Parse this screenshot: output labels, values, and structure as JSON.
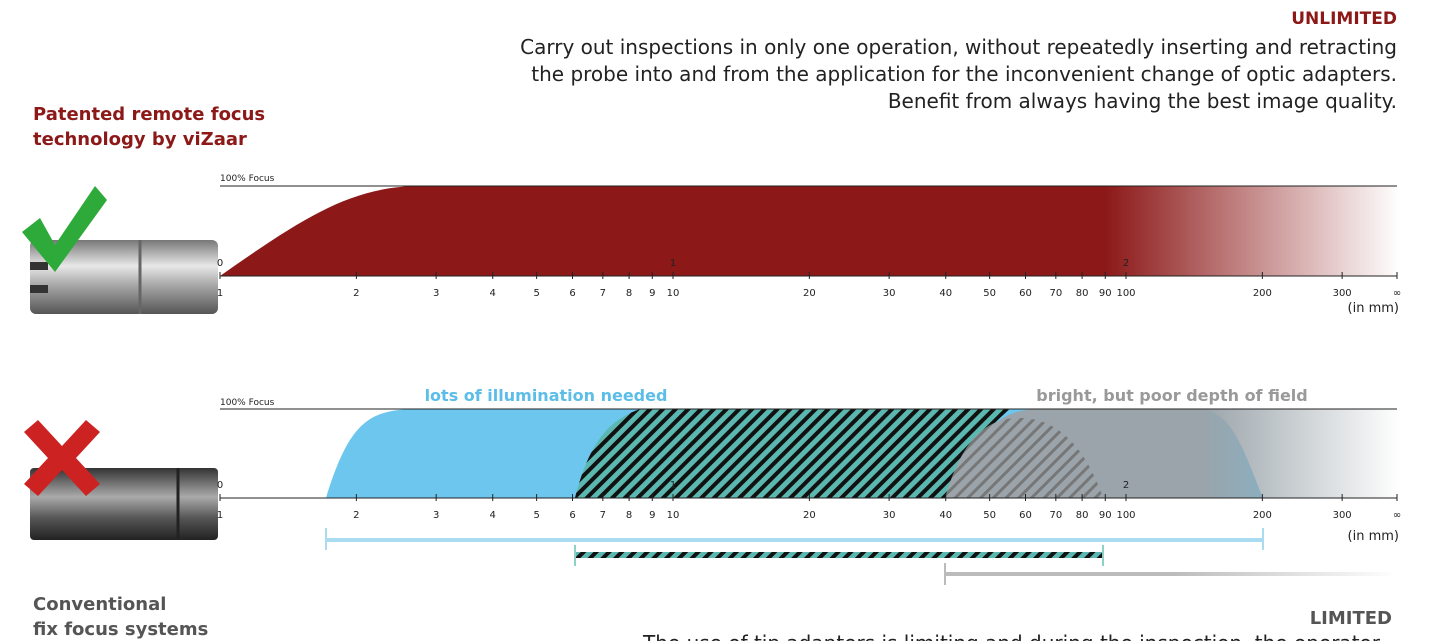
{
  "header": {
    "title": "UNLIMITED",
    "lines": [
      "Carry out inspections in only one operation, without repeatedly inserting and retracting",
      "the probe into and from the application for the inconvenient change of optic adapters.",
      "Benefit from always having the best image quality."
    ]
  },
  "top_panel": {
    "label_lines": [
      "Patented remote focus",
      "technology by viZaar"
    ],
    "focus_label": "100% Focus",
    "unit_label": "(in mm)"
  },
  "bottom_panel": {
    "focus_label": "100% Focus",
    "unit_label": "(in mm)",
    "illumination_label": "lots of illumination needed",
    "depth_label": "bright, but poor depth of field",
    "label_lines": [
      "Conventional",
      "fix focus systems"
    ]
  },
  "axis": {
    "ticks": [
      1,
      2,
      3,
      4,
      5,
      6,
      7,
      8,
      9,
      10,
      20,
      30,
      40,
      50,
      60,
      70,
      80,
      90,
      100,
      200,
      300
    ],
    "infinity_label": "∞",
    "decade_labels": [
      0,
      1,
      2
    ]
  },
  "footer": {
    "title": "LIMITED",
    "text": "The use of tip adapters is limiting and during the inspection, the operator"
  }
}
